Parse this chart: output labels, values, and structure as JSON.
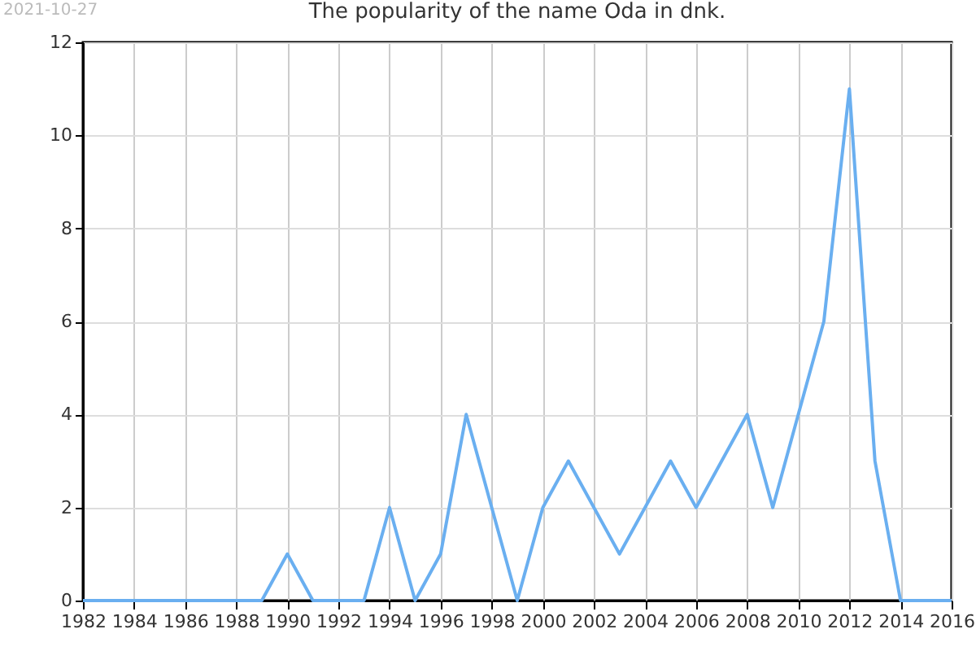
{
  "chart_data": {
    "type": "line",
    "title": "The popularity of the name Oda in dnk.",
    "annotations": [
      "2021-10-27"
    ],
    "x": [
      1982,
      1983,
      1984,
      1985,
      1986,
      1987,
      1988,
      1989,
      1990,
      1991,
      1992,
      1993,
      1994,
      1995,
      1996,
      1997,
      1998,
      1999,
      2000,
      2001,
      2002,
      2003,
      2004,
      2005,
      2006,
      2007,
      2008,
      2009,
      2010,
      2011,
      2012,
      2013,
      2014,
      2015,
      2016
    ],
    "series": [
      {
        "color": "#6aaff0",
        "values": [
          0,
          0,
          0,
          0,
          0,
          0,
          0,
          0,
          1,
          0,
          0,
          0,
          2,
          0,
          1,
          4,
          2,
          0,
          2,
          3,
          2,
          1,
          2,
          3,
          2,
          3,
          4,
          2,
          4,
          6,
          11,
          3,
          0,
          0,
          0
        ]
      }
    ],
    "xlim": [
      1982,
      2016
    ],
    "xticks": [
      1982,
      1984,
      1986,
      1988,
      1990,
      1992,
      1994,
      1996,
      1998,
      2000,
      2002,
      2004,
      2006,
      2008,
      2010,
      2012,
      2014,
      2016
    ],
    "ylim": [
      0,
      12
    ],
    "yticks": [
      0,
      2,
      4,
      6,
      8,
      10,
      12
    ],
    "grid": true
  }
}
